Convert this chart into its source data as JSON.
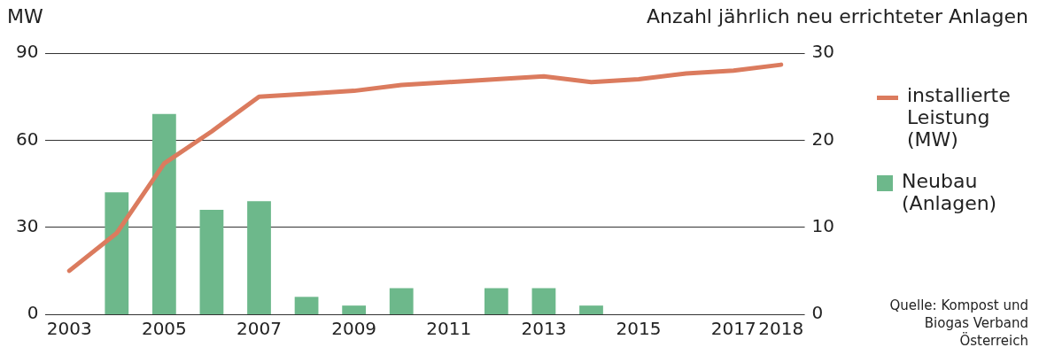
{
  "chart_data": {
    "type": "bar",
    "ylabel": "MW",
    "y2label": "Anzahl jährlich neu errichteter Anlagen",
    "categories": [
      "2003",
      null,
      "2005",
      null,
      "2007",
      null,
      "2009",
      null,
      "2011",
      null,
      "2013",
      null,
      "2015",
      null,
      "2017",
      "2018"
    ],
    "series": [
      {
        "name": "installierte Leistung (MW)",
        "type": "line",
        "color": "#db7b5e",
        "values": [
          15,
          28,
          52,
          63,
          75,
          76,
          77,
          79,
          80,
          81,
          82,
          80,
          81,
          83,
          84,
          86
        ]
      },
      {
        "name": "Neubau (Anlagen)",
        "axis": "y2",
        "color": "#6db88b",
        "values": [
          0,
          14,
          23,
          12,
          13,
          2,
          1,
          3,
          0,
          3,
          3,
          1,
          0,
          0,
          0,
          0
        ]
      }
    ],
    "ylim": [
      0,
      90
    ],
    "yticks": [
      0,
      30,
      60,
      90
    ],
    "y2lim": [
      0,
      30
    ],
    "y2ticks": [
      0,
      10,
      20,
      30
    ],
    "grid": "y",
    "legend": "right",
    "marker": "none",
    "annotations": [
      "Quelle: Kompost und Biogas Verband Österreich"
    ]
  }
}
